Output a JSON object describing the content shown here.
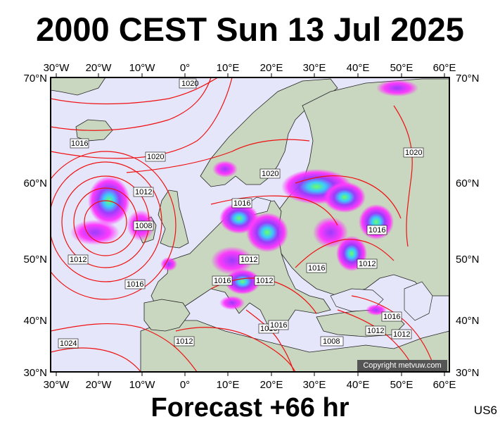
{
  "header": {
    "title": "2000 CEST Sun 13 Jul 2025"
  },
  "footer": {
    "forecast": "Forecast +66 hr",
    "model_code": "US6"
  },
  "map": {
    "copyright": "Copyright metvuw.com",
    "lon_labels": [
      "30°W",
      "20°W",
      "10°W",
      "0°",
      "10°E",
      "20°E",
      "30°E",
      "40°E",
      "50°E",
      "60°E"
    ],
    "lat_labels": [
      "70°N",
      "60°N",
      "50°N",
      "40°N",
      "30°N"
    ],
    "isobar_labels": [
      "1020",
      "1016",
      "1020",
      "1012",
      "1008",
      "1012",
      "1016",
      "1024",
      "1016",
      "1020",
      "1016",
      "1012",
      "1012",
      "1016",
      "1016",
      "1016",
      "1012",
      "1012",
      "1016",
      "1008",
      "1016",
      "1012",
      "1012",
      "1020"
    ],
    "colors": {
      "ocean": "#e6e6fa",
      "land": "#c9d6c0",
      "isobar": "#ee1111",
      "precip_light": "#ff33ff",
      "precip_mid": "#9933ff",
      "precip_heavy": "#33ccff",
      "precip_core": "#66ff66"
    }
  }
}
